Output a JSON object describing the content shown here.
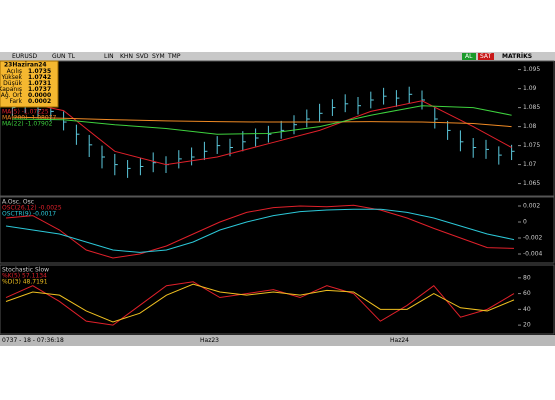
{
  "toolbar": {
    "symbol": "EURUSD",
    "buttons": [
      "GUN",
      "TL",
      "LIN",
      "KHN",
      "SVD",
      "SYM",
      "TMP"
    ],
    "buy": "AL",
    "sell": "SAT",
    "brand": "MATRİKS"
  },
  "info_box": {
    "title": "23Haziran24",
    "rows": [
      [
        "Açılış",
        "1.0735"
      ],
      [
        "Yüksek",
        "1.0742"
      ],
      [
        "Düşük",
        "1.0731"
      ],
      [
        "Kapanış",
        "1.0737"
      ],
      [
        "Ağ. Ort",
        "0.0000"
      ],
      [
        "Fark",
        "0.0002"
      ]
    ]
  },
  "panels": [
    {
      "type": "ohlc",
      "ylim": [
        1.062,
        1.097
      ],
      "yticks": [
        1.095,
        1.09,
        1.085,
        1.08,
        1.075,
        1.07,
        1.065
      ],
      "color": "#5cc8dc",
      "high": [
        1.0872,
        1.088,
        1.0866,
        1.0858,
        1.084,
        1.0805,
        1.0778,
        1.075,
        1.0728,
        1.0712,
        1.0718,
        1.0732,
        1.0722,
        1.0738,
        1.0745,
        1.076,
        1.0775,
        1.0768,
        1.0788,
        1.0795,
        1.0802,
        1.0815,
        1.083,
        1.0845,
        1.086,
        1.0872,
        1.0885,
        1.0878,
        1.0892,
        1.0902,
        1.0896,
        1.0905,
        1.0895,
        1.085,
        1.0815,
        1.079,
        1.077,
        1.0765,
        1.0748,
        1.0752
      ],
      "low": [
        1.0828,
        1.0836,
        1.0822,
        1.0815,
        1.079,
        1.0752,
        1.072,
        1.069,
        1.0672,
        1.0665,
        1.0672,
        1.068,
        1.0678,
        1.069,
        1.0698,
        1.0712,
        1.0728,
        1.0722,
        1.0735,
        1.0748,
        1.0758,
        1.0768,
        1.078,
        1.0798,
        1.0812,
        1.0828,
        1.0838,
        1.0832,
        1.0848,
        1.0858,
        1.0852,
        1.0862,
        1.0845,
        1.0795,
        1.0765,
        1.0735,
        1.0718,
        1.0715,
        1.07,
        1.0712
      ],
      "close": [
        1.085,
        1.0858,
        1.0845,
        1.084,
        1.0812,
        1.078,
        1.0752,
        1.072,
        1.07,
        1.069,
        1.0695,
        1.0705,
        1.07,
        1.0715,
        1.072,
        1.0735,
        1.075,
        1.0745,
        1.076,
        1.077,
        1.078,
        1.079,
        1.0805,
        1.082,
        1.0835,
        1.085,
        1.086,
        1.0855,
        1.087,
        1.088,
        1.0875,
        1.0885,
        1.087,
        1.082,
        1.079,
        1.076,
        1.0745,
        1.074,
        1.0725,
        1.0735
      ],
      "series": [
        {
          "name": "MA(5) -1.07225",
          "color": "#e0202a",
          "x": [
            0,
            4,
            8,
            12,
            16,
            20,
            24,
            28,
            32,
            36,
            39
          ],
          "values": [
            1.087,
            1.0842,
            1.0735,
            1.07,
            1.072,
            1.0755,
            1.079,
            1.084,
            1.0868,
            1.08,
            1.0745
          ]
        },
        {
          "name": "MA(200) -1.08077",
          "color": "#f08a24",
          "x": [
            0,
            4,
            8,
            12,
            16,
            20,
            24,
            28,
            32,
            36,
            39
          ],
          "values": [
            1.0825,
            1.0822,
            1.0818,
            1.0815,
            1.0813,
            1.0812,
            1.0812,
            1.0813,
            1.0812,
            1.0808,
            1.08
          ]
        },
        {
          "name": "MA(22) -1.07902",
          "color": "#3ed23e",
          "x": [
            0,
            4,
            8,
            12,
            16,
            20,
            24,
            28,
            32,
            36,
            39
          ],
          "values": [
            1.082,
            1.0818,
            1.0805,
            1.0795,
            1.078,
            1.0782,
            1.08,
            1.083,
            1.0855,
            1.085,
            1.083
          ]
        }
      ]
    },
    {
      "type": "line",
      "title": "A.Osc. Osc",
      "ylim": [
        -0.005,
        0.003
      ],
      "yticks": [
        0.002,
        0,
        -0.002,
        -0.004
      ],
      "series": [
        {
          "name": "OSC(26,12) -0.0025",
          "color": "#e0202a",
          "values": [
            0.0005,
            0.0008,
            -0.001,
            -0.0035,
            -0.0045,
            -0.004,
            -0.003,
            -0.0015,
            0.0,
            0.0012,
            0.0018,
            0.002,
            0.0019,
            0.0021,
            0.0015,
            0.0005,
            -0.0008,
            -0.002,
            -0.0032,
            -0.0033
          ]
        },
        {
          "name": "OSCTR(9) -0.0017",
          "color": "#2cc8d8",
          "values": [
            -0.0005,
            -0.001,
            -0.0015,
            -0.0025,
            -0.0035,
            -0.0038,
            -0.0035,
            -0.0025,
            -0.001,
            0.0,
            0.0008,
            0.0013,
            0.0015,
            0.0016,
            0.0016,
            0.0012,
            0.0005,
            -0.0005,
            -0.0015,
            -0.0022
          ]
        }
      ]
    },
    {
      "type": "line",
      "title": "Stochastic Slow",
      "ylim": [
        10,
        95
      ],
      "yticks": [
        80,
        60,
        40,
        20
      ],
      "series": [
        {
          "name": "%K(5) 57.1134",
          "color": "#e0202a",
          "values": [
            55,
            70,
            50,
            25,
            20,
            45,
            70,
            75,
            55,
            60,
            65,
            55,
            70,
            60,
            25,
            45,
            70,
            30,
            40,
            60
          ]
        },
        {
          "name": "%D(3) 48.7191",
          "color": "#f0c020",
          "values": [
            50,
            62,
            58,
            38,
            24,
            35,
            58,
            72,
            62,
            58,
            62,
            58,
            64,
            62,
            40,
            40,
            60,
            42,
            38,
            52
          ]
        }
      ]
    }
  ],
  "status": {
    "left": "0737 - 18 - 07:36:18",
    "dates": [
      "Haz23",
      "Haz24"
    ]
  }
}
